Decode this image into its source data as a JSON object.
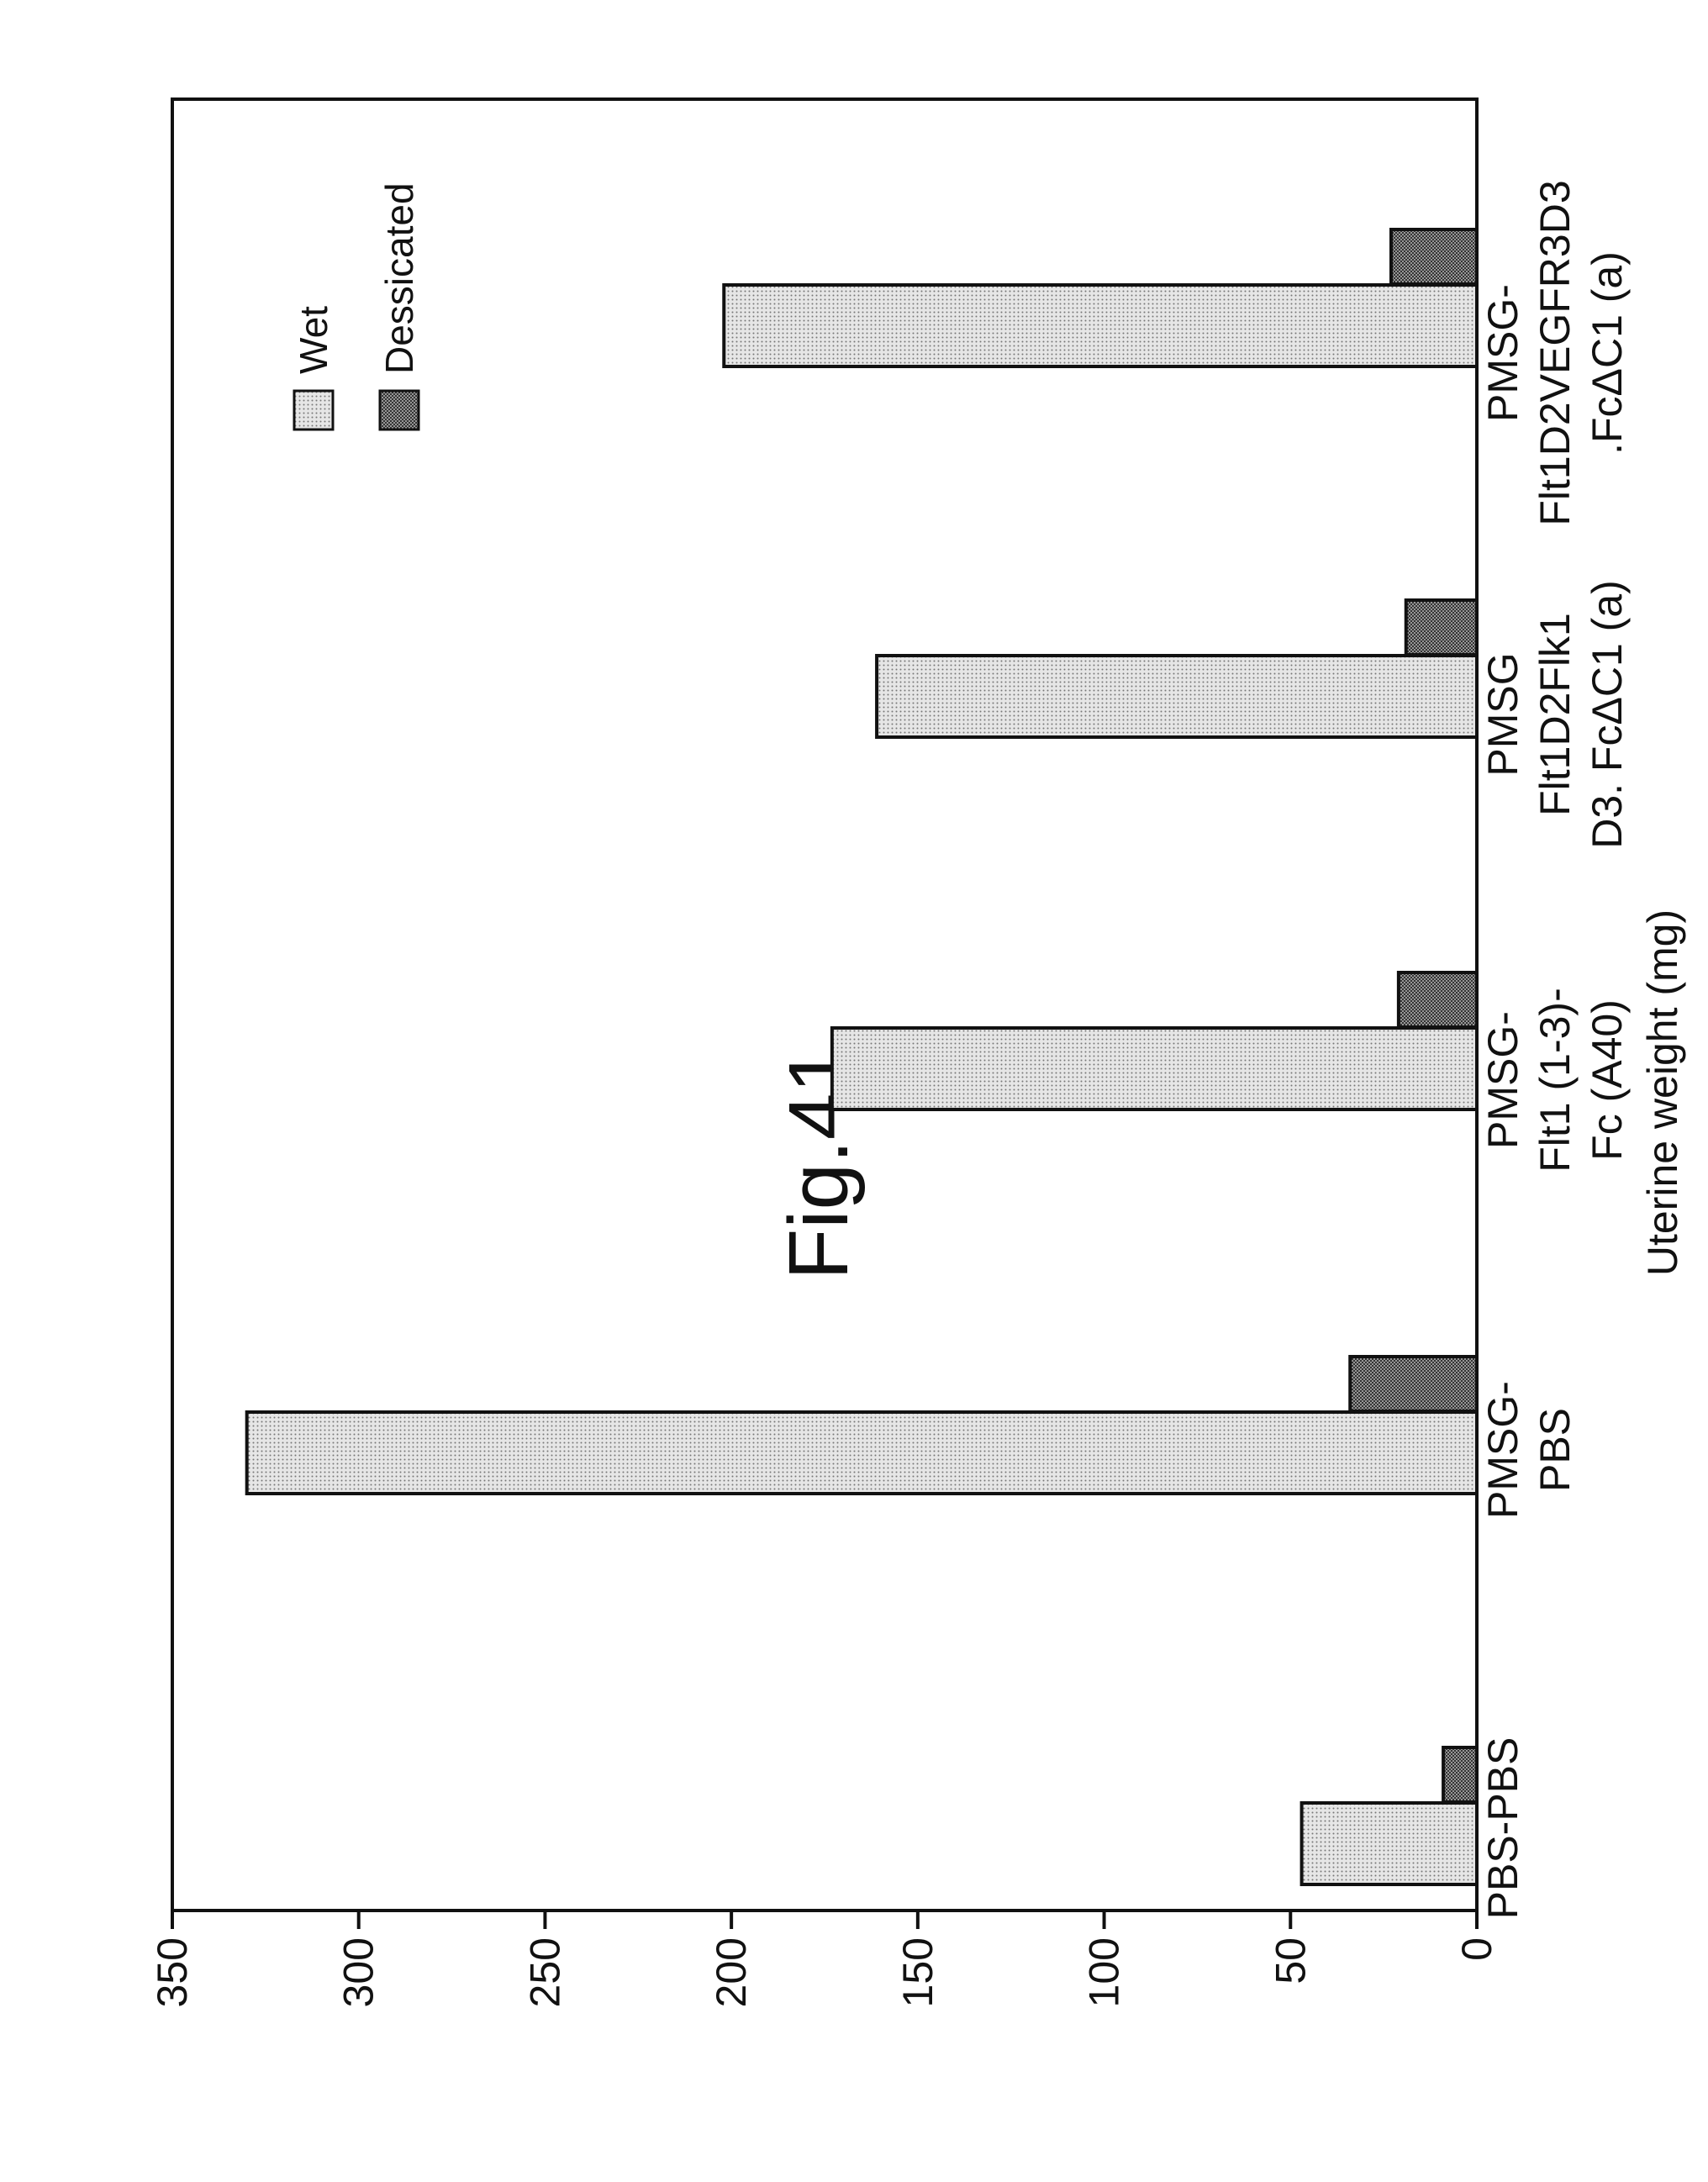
{
  "chart_data": {
    "type": "bar",
    "orientation": "rotated page (landscape chart printed sideways)",
    "title": "Fig.41.",
    "xlabel": "",
    "ylabel": "Uterine weight (mg)",
    "ylim": [
      0,
      350
    ],
    "yticks": [
      0,
      50,
      100,
      150,
      200,
      250,
      300,
      350
    ],
    "categories": [
      [
        "PBS-PBS"
      ],
      [
        "PMSG-",
        "PBS"
      ],
      [
        "PMSG-",
        "Flt1 (1-3)-",
        "Fc (A40)"
      ],
      [
        "PMSG",
        "Flt1D2Flk1",
        "D3. FcΔC1 (a)"
      ],
      [
        "PMSG-",
        "Flt1D2VEGFR3D3",
        ".FcΔC1 (a)"
      ]
    ],
    "series": [
      {
        "name": "Wet",
        "values": [
          47,
          330,
          173,
          161,
          202
        ],
        "color": "#d2d2d2"
      },
      {
        "name": "Dessicated",
        "values": [
          9,
          34,
          21,
          19,
          23
        ],
        "color": "#8c8c8c"
      }
    ],
    "legend_placement": "top-right",
    "grid": false
  }
}
